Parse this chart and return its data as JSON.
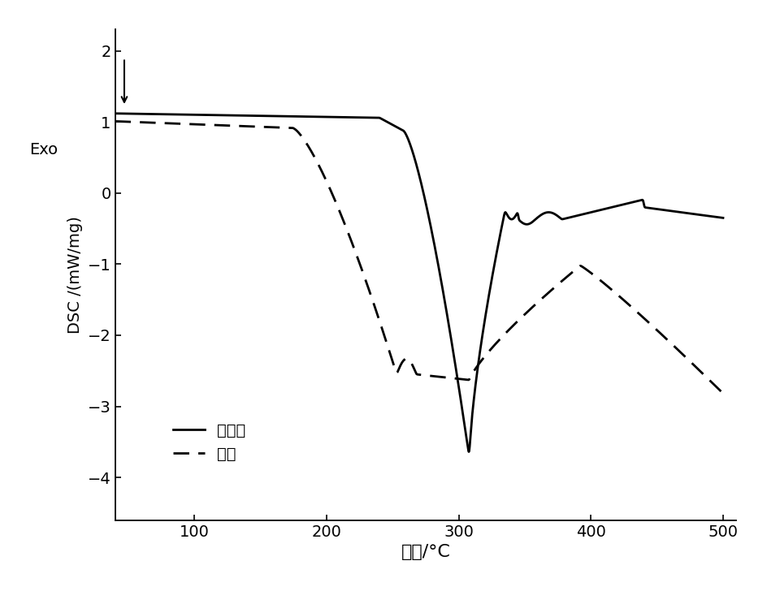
{
  "title": "",
  "xlabel": "温度/°C",
  "ylabel": "DSC /(mW/mg)",
  "exo_label": "Exo",
  "xlim": [
    40,
    510
  ],
  "ylim": [
    -4.6,
    2.3
  ],
  "xticks": [
    100,
    200,
    300,
    400,
    500
  ],
  "yticks": [
    -4,
    -3,
    -2,
    -1,
    0,
    1,
    2
  ],
  "legend_solid": "未改性",
  "legend_dashed": "改性",
  "bg_color": "#ffffff",
  "line_color": "#000000"
}
